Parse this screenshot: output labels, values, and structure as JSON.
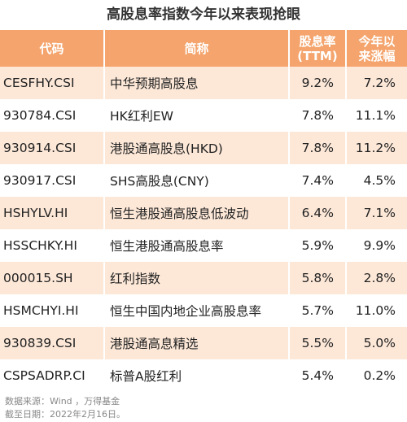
{
  "header": {
    "title": "高股息率指数今年以来表现抢眼"
  },
  "table": {
    "columns": [
      [
        "代码"
      ],
      [
        "简称"
      ],
      [
        "股息率",
        "(TTM)"
      ],
      [
        "今年以",
        "来涨幅"
      ]
    ],
    "rows": [
      [
        "CESFHY.CSI",
        "中华预期高股息",
        "9.2%",
        "7.2%"
      ],
      [
        "930784.CSI",
        "HK红利EW",
        "7.8%",
        "11.1%"
      ],
      [
        "930914.CSI",
        "港股通高股息(HKD)",
        "7.8%",
        "11.2%"
      ],
      [
        "930917.CSI",
        "SHS高股息(CNY)",
        "7.4%",
        "4.5%"
      ],
      [
        "HSHYLV.HI",
        "恒生港股通高股息低波动",
        "6.4%",
        "7.1%"
      ],
      [
        "HSSCHKY.HI",
        "恒生港股通高股息率",
        "5.9%",
        "9.9%"
      ],
      [
        "000015.SH",
        "红利指数",
        "5.8%",
        "2.8%"
      ],
      [
        "HSMCHYI.HI",
        "恒生中国内地企业高股息率",
        "5.7%",
        "11.0%"
      ],
      [
        "930839.CSI",
        "港股通高息精选",
        "5.5%",
        "5.0%"
      ],
      [
        "CSPSADRP.CI",
        "标普A股红利",
        "5.4%",
        "0.2%"
      ]
    ]
  },
  "footer": [
    "数据来源：Wind ，万得基金",
    "截至日期：2022年2月16日。"
  ]
}
